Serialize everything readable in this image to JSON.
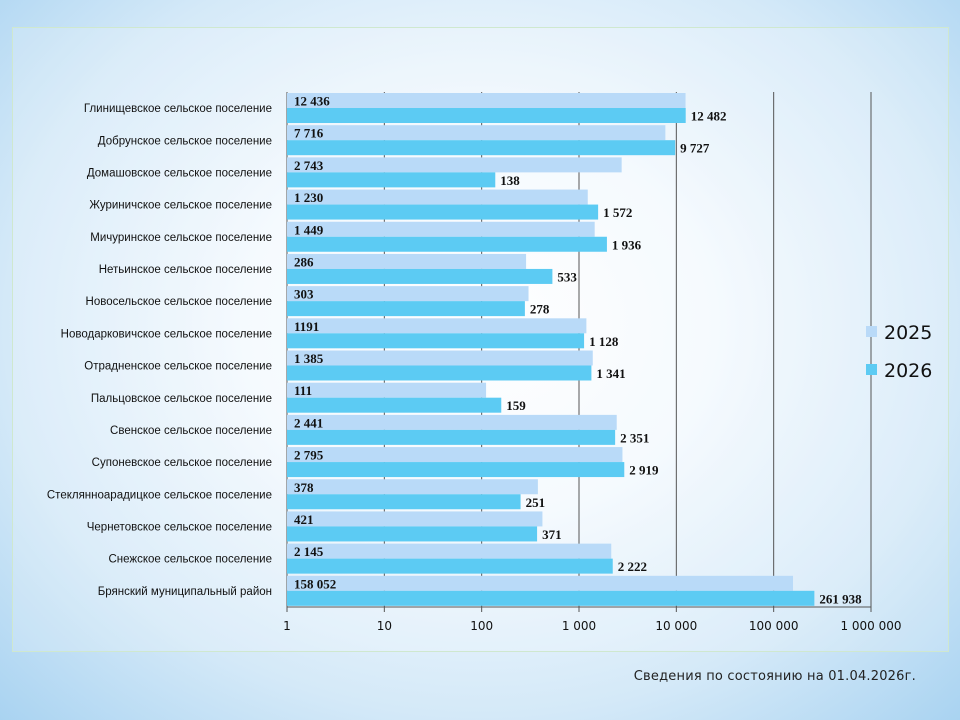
{
  "footnote": "Сведения по состоянию на 01.04.2026г.",
  "colors": {
    "series_2025": "#b9daf8",
    "series_2026": "#5ccbf3",
    "gridline": "#555555"
  },
  "chart_data": {
    "type": "bar",
    "orientation": "horizontal",
    "x_scale": "log",
    "xlim": [
      1,
      1000000
    ],
    "grid": true,
    "legend": "right",
    "title": "",
    "xlabel": "",
    "ylabel": "",
    "x_ticks": [
      {
        "value": 1,
        "label": "1"
      },
      {
        "value": 10,
        "label": "10"
      },
      {
        "value": 100,
        "label": "100"
      },
      {
        "value": 1000,
        "label": "1 000"
      },
      {
        "value": 10000,
        "label": "10 000"
      },
      {
        "value": 100000,
        "label": "100 000"
      },
      {
        "value": 1000000,
        "label": "1 000 000"
      }
    ],
    "categories": [
      "Глинищевское сельское поселение",
      "Добрунское сельское поселение",
      "Домашовское сельское поселение",
      "Журиничское сельское поселение",
      "Мичуринское сельское поселение",
      "Нетьинское сельское поселение",
      "Новосельское сельское поселение",
      "Новодарковичское сельское поселение",
      "Отрадненское сельское поселение",
      "Пальцовское сельское поселение",
      "Свенское сельское поселение",
      "Супоневское сельское поселение",
      "Стеклянноарадицкое сельское поселение",
      "Чернетовское сельское поселение",
      "Снежское сельское поселение",
      "Брянский муниципальный район"
    ],
    "series": [
      {
        "name": "2025",
        "values": [
          12436,
          7716,
          2743,
          1230,
          1449,
          286,
          303,
          1191,
          1385,
          111,
          2441,
          2795,
          378,
          421,
          2145,
          158052
        ],
        "labels": [
          "12 436",
          "7 716",
          "2 743",
          "1 230",
          "1 449",
          "286",
          "303",
          "1191",
          "1 385",
          "111",
          "2 441",
          "2 795",
          "378",
          "421",
          "2 145",
          "158 052"
        ]
      },
      {
        "name": "2026",
        "values": [
          12482,
          9727,
          138,
          1572,
          1936,
          533,
          278,
          1128,
          1341,
          159,
          2351,
          2919,
          251,
          371,
          2222,
          261938
        ],
        "labels": [
          "12 482",
          "9 727",
          "138",
          "1 572",
          "1 936",
          "533",
          "278",
          "1 128",
          "1 341",
          "159",
          "2 351",
          "2 919",
          "251",
          "371",
          "2 222",
          "261 938"
        ]
      }
    ]
  }
}
